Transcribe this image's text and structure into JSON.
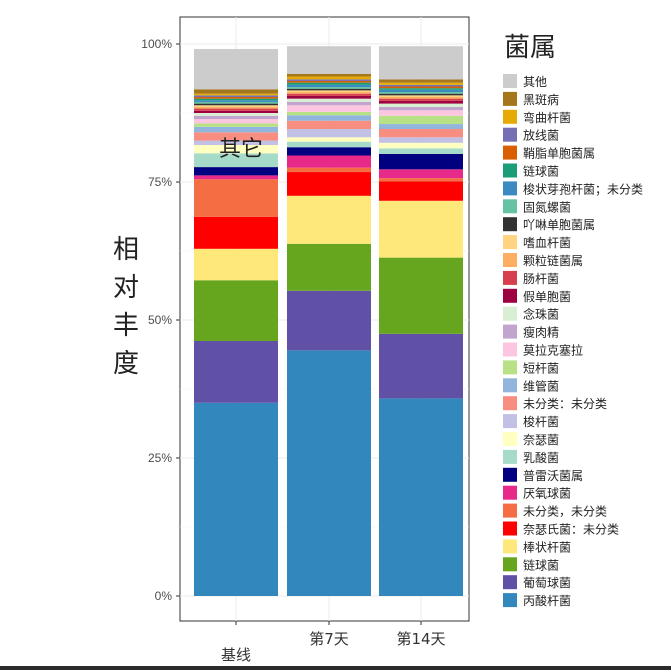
{
  "chart_data": {
    "type": "bar",
    "stacked": true,
    "categories": [
      "基线",
      "第7天",
      "第14天"
    ],
    "ylabel": "相对丰度",
    "yticks": [
      "0%",
      "25%",
      "50%",
      "75%",
      "100%"
    ],
    "ylim": [
      0,
      100
    ],
    "annotation": "其它",
    "legend_title": "菌属",
    "legend_position": "right",
    "grid": true,
    "series": [
      {
        "name": "其他",
        "color": "#CCCCCC",
        "values": [
          7.3,
          5.0,
          6.0
        ]
      },
      {
        "name": "黑斑病",
        "color": "#A6761D",
        "values": [
          0.8,
          0.5,
          0.6
        ]
      },
      {
        "name": "弯曲杆菌",
        "color": "#E6AB02",
        "values": [
          0.3,
          0.5,
          0.4
        ]
      },
      {
        "name": "放线菌",
        "color": "#7570B3",
        "values": [
          0.3,
          0.3,
          0.3
        ]
      },
      {
        "name": "鞘脂单胞菌属",
        "color": "#D95F02",
        "values": [
          0.3,
          0.3,
          0.3
        ]
      },
      {
        "name": "链球菌",
        "color": "#1B9E77",
        "values": [
          0.3,
          0.4,
          0.3
        ]
      },
      {
        "name": "梭状芽孢杆菌；未分类",
        "color": "#3B8BC2",
        "values": [
          0.3,
          0.4,
          0.4
        ]
      },
      {
        "name": "固氮螺菌",
        "color": "#66C2A5",
        "values": [
          0.3,
          0.3,
          0.3
        ]
      },
      {
        "name": "吖啉单胞菌属",
        "color": "#333333",
        "values": [
          0.3,
          0.3,
          0.3
        ]
      },
      {
        "name": "嗜血杆菌",
        "color": "#FFD37F",
        "values": [
          0.3,
          0.3,
          0.3
        ]
      },
      {
        "name": "颗粒链菌属",
        "color": "#FDAE61",
        "values": [
          0.3,
          0.3,
          0.3
        ]
      },
      {
        "name": "肠杆菌",
        "color": "#D6404E",
        "values": [
          0.4,
          0.4,
          0.4
        ]
      },
      {
        "name": "假单胞菌",
        "color": "#9E0142",
        "values": [
          0.4,
          0.5,
          0.5
        ]
      },
      {
        "name": "念珠菌",
        "color": "#D9EFD3",
        "values": [
          0.5,
          0.6,
          0.6
        ]
      },
      {
        "name": "瘦肉精",
        "color": "#C2A5CF",
        "values": [
          0.6,
          0.6,
          0.6
        ]
      },
      {
        "name": "莫拉克塞拉",
        "color": "#FCC5E0",
        "values": [
          0.8,
          1.2,
          1.0
        ]
      },
      {
        "name": "短杆菌",
        "color": "#B8E186",
        "values": [
          0.6,
          0.6,
          1.5
        ]
      },
      {
        "name": "维管菌",
        "color": "#92B5DE",
        "values": [
          1.0,
          1.0,
          0.9
        ]
      },
      {
        "name": "未分类：未分类",
        "color": "#F88E80",
        "values": [
          1.5,
          1.5,
          1.5
        ]
      },
      {
        "name": "梭杆菌",
        "color": "#C2C0E4",
        "values": [
          0.8,
          1.5,
          1.0
        ]
      },
      {
        "name": "奈瑟菌",
        "color": "#FFFFBF",
        "values": [
          1.5,
          0.8,
          1.0
        ]
      },
      {
        "name": "乳酸菌",
        "color": "#A6DBC9",
        "values": [
          2.5,
          1.0,
          1.0
        ]
      },
      {
        "name": "普雷沃菌属",
        "color": "#000080",
        "values": [
          1.5,
          1.5,
          2.8
        ]
      },
      {
        "name": "厌氧球菌",
        "color": "#E7298A",
        "values": [
          0.7,
          2.2,
          1.6
        ]
      },
      {
        "name": "未分类，未分类",
        "color": "#F46D43",
        "values": [
          6.8,
          0.8,
          0.6
        ]
      },
      {
        "name": "奈瑟氏菌：未分类",
        "color": "#FF0000",
        "values": [
          5.8,
          4.3,
          3.5
        ]
      },
      {
        "name": "棒状杆菌",
        "color": "#FEE879",
        "values": [
          5.7,
          8.7,
          10.3
        ]
      },
      {
        "name": "链球菌",
        "color": "#66A61E",
        "values": [
          11.0,
          8.5,
          13.8
        ]
      },
      {
        "name": "葡萄球菌",
        "color": "#6050A6",
        "values": [
          11.2,
          10.8,
          11.7
        ]
      },
      {
        "name": "丙酸杆菌",
        "color": "#3288BD",
        "values": [
          35.0,
          44.5,
          35.8
        ]
      }
    ]
  }
}
